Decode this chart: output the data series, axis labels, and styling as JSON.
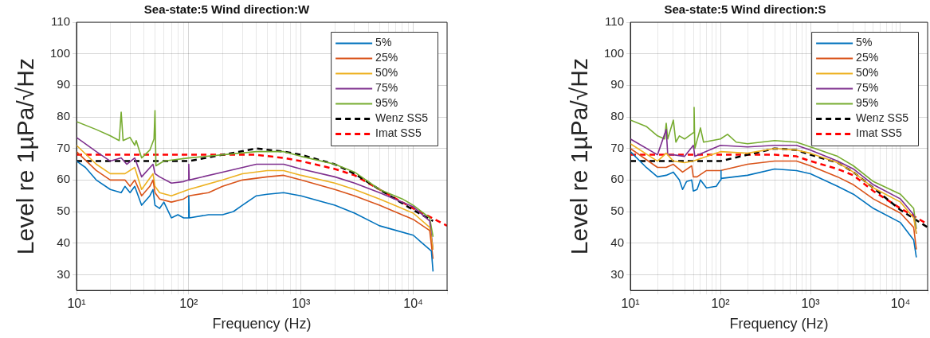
{
  "chart_data": [
    {
      "type": "line",
      "title": "Sea-state:5 Wind direction:W",
      "xlabel": "Frequency (Hz)",
      "ylabel": "Level re 1µPa/√Hz",
      "log": "x",
      "grid": true,
      "legend": "top right",
      "xlim": [
        10,
        20000
      ],
      "ylim": [
        25,
        110
      ],
      "xticks": [
        {
          "value": 10,
          "label": "10¹"
        },
        {
          "value": 20,
          "label": null
        },
        {
          "value": 30,
          "label": null
        },
        {
          "value": 40,
          "label": null
        },
        {
          "value": 50,
          "label": null
        },
        {
          "value": 60,
          "label": null
        },
        {
          "value": 70,
          "label": null
        },
        {
          "value": 80,
          "label": null
        },
        {
          "value": 90,
          "label": null
        },
        {
          "value": 100,
          "label": "10²"
        },
        {
          "value": 200,
          "label": null
        },
        {
          "value": 300,
          "label": null
        },
        {
          "value": 400,
          "label": null
        },
        {
          "value": 500,
          "label": null
        },
        {
          "value": 600,
          "label": null
        },
        {
          "value": 700,
          "label": null
        },
        {
          "value": 800,
          "label": null
        },
        {
          "value": 900,
          "label": null
        },
        {
          "value": 1000,
          "label": "10³"
        },
        {
          "value": 2000,
          "label": null
        },
        {
          "value": 3000,
          "label": null
        },
        {
          "value": 4000,
          "label": null
        },
        {
          "value": 5000,
          "label": null
        },
        {
          "value": 6000,
          "label": null
        },
        {
          "value": 7000,
          "label": null
        },
        {
          "value": 8000,
          "label": null
        },
        {
          "value": 9000,
          "label": null
        },
        {
          "value": 10000,
          "label": "10⁴"
        },
        {
          "value": 20000,
          "label": null
        }
      ],
      "yticks": [
        30,
        40,
        50,
        60,
        70,
        80,
        90,
        100,
        110
      ],
      "series": [
        {
          "name": "5%",
          "color": "#0072bd",
          "x": [
            10,
            12,
            15,
            20,
            25,
            27,
            30,
            33,
            38,
            45,
            48,
            50,
            55,
            60,
            70,
            80,
            90,
            99,
            100,
            101,
            150,
            200,
            250,
            300,
            400,
            500,
            700,
            1000,
            2000,
            3000,
            5000,
            10000,
            12000,
            14500,
            15000
          ],
          "values": [
            66,
            64,
            60,
            57,
            56,
            58,
            56,
            58,
            52,
            55,
            57,
            52,
            51,
            53,
            48,
            49,
            48,
            48,
            55,
            48,
            49,
            49,
            50,
            52,
            55,
            55.5,
            56,
            55,
            52,
            49.5,
            45.5,
            42.5,
            40,
            37.5,
            31
          ]
        },
        {
          "name": "25%",
          "color": "#d95319",
          "x": [
            10,
            15,
            20,
            27,
            30,
            33,
            38,
            45,
            48,
            50,
            55,
            70,
            90,
            100,
            150,
            200,
            300,
            500,
            700,
            1000,
            2000,
            3000,
            5000,
            10000,
            14000,
            15000
          ],
          "values": [
            69,
            63,
            60,
            60,
            58,
            60,
            55,
            58,
            60,
            56,
            54,
            53,
            54,
            55,
            56,
            58,
            60,
            61,
            61.5,
            60,
            57,
            55,
            52,
            47.5,
            44,
            35
          ]
        },
        {
          "name": "50%",
          "color": "#edb120",
          "x": [
            10,
            15,
            20,
            27,
            33,
            38,
            48,
            50,
            55,
            70,
            100,
            200,
            300,
            500,
            700,
            1000,
            2000,
            3000,
            5000,
            10000,
            14000,
            15000
          ],
          "values": [
            71,
            65,
            62,
            62,
            64,
            57,
            62,
            58,
            56,
            55,
            57,
            60,
            62,
            63,
            63,
            61.5,
            59,
            57,
            54,
            49.5,
            45,
            38
          ]
        },
        {
          "name": "75%",
          "color": "#7e2f8e",
          "x": [
            10,
            15,
            20,
            25,
            28,
            33,
            38,
            48,
            50,
            55,
            70,
            90,
            99,
            100,
            101,
            200,
            400,
            700,
            1000,
            2000,
            3000,
            5000,
            10000,
            14000,
            15000
          ],
          "values": [
            73.5,
            69,
            66,
            67,
            65,
            67,
            61,
            65,
            62,
            61,
            59,
            59.5,
            60,
            65,
            60,
            62.5,
            65,
            65,
            63.5,
            61,
            59,
            56,
            51.5,
            47,
            38
          ]
        },
        {
          "name": "95%",
          "color": "#77ac30",
          "x": [
            10,
            15,
            20,
            24,
            25,
            26,
            30,
            33,
            34,
            38,
            45,
            49,
            50,
            51,
            60,
            100,
            200,
            400,
            700,
            1000,
            2000,
            3000,
            5000,
            8000,
            10000,
            14000,
            15000
          ],
          "values": [
            78.5,
            76,
            74,
            72.5,
            81.5,
            72.5,
            73.5,
            71,
            72.5,
            67,
            69.5,
            73,
            82,
            64.5,
            66,
            67,
            68,
            69,
            69,
            67.5,
            65,
            62.5,
            57,
            54,
            52,
            48,
            42
          ]
        },
        {
          "name": "Wenz SS5",
          "color": "#000000",
          "line_style": "dashed",
          "x": [
            10,
            100,
            200,
            400,
            700,
            1000,
            2000,
            3000,
            5000,
            10000,
            15000
          ],
          "values": [
            66,
            66,
            68,
            70,
            69,
            68,
            65,
            62,
            57,
            50.5,
            47
          ]
        },
        {
          "name": "Imat SS5",
          "color": "#ff0000",
          "line_style": "dashed",
          "x": [
            10,
            100,
            400,
            700,
            1000,
            2000,
            3000,
            5000,
            10000,
            20000
          ],
          "values": [
            68,
            68,
            68,
            67,
            66,
            63.5,
            61.5,
            57,
            51,
            45.5
          ]
        }
      ]
    },
    {
      "type": "line",
      "title": "Sea-state:5 Wind direction:S",
      "xlabel": "Frequency (Hz)",
      "ylabel": "Level re 1µPa/√Hz",
      "log": "x",
      "grid": true,
      "legend": "top right",
      "xlim": [
        10,
        20000
      ],
      "ylim": [
        25,
        110
      ],
      "xticks": [
        {
          "value": 10,
          "label": "10¹"
        },
        {
          "value": 20,
          "label": null
        },
        {
          "value": 30,
          "label": null
        },
        {
          "value": 40,
          "label": null
        },
        {
          "value": 50,
          "label": null
        },
        {
          "value": 60,
          "label": null
        },
        {
          "value": 70,
          "label": null
        },
        {
          "value": 80,
          "label": null
        },
        {
          "value": 90,
          "label": null
        },
        {
          "value": 100,
          "label": "10²"
        },
        {
          "value": 200,
          "label": null
        },
        {
          "value": 300,
          "label": null
        },
        {
          "value": 400,
          "label": null
        },
        {
          "value": 500,
          "label": null
        },
        {
          "value": 600,
          "label": null
        },
        {
          "value": 700,
          "label": null
        },
        {
          "value": 800,
          "label": null
        },
        {
          "value": 900,
          "label": null
        },
        {
          "value": 1000,
          "label": "10³"
        },
        {
          "value": 2000,
          "label": null
        },
        {
          "value": 3000,
          "label": null
        },
        {
          "value": 4000,
          "label": null
        },
        {
          "value": 5000,
          "label": null
        },
        {
          "value": 6000,
          "label": null
        },
        {
          "value": 7000,
          "label": null
        },
        {
          "value": 8000,
          "label": null
        },
        {
          "value": 9000,
          "label": null
        },
        {
          "value": 10000,
          "label": "10⁴"
        },
        {
          "value": 20000,
          "label": null
        }
      ],
      "yticks": [
        30,
        40,
        50,
        60,
        70,
        80,
        90,
        100,
        110
      ],
      "series": [
        {
          "name": "5%",
          "color": "#0072bd",
          "x": [
            10,
            15,
            20,
            25,
            30,
            35,
            38,
            42,
            48,
            50,
            55,
            60,
            70,
            90,
            100,
            101,
            102,
            200,
            400,
            700,
            1000,
            2000,
            3000,
            5000,
            10000,
            14000,
            15000
          ],
          "values": [
            69,
            64,
            61,
            61.5,
            62.5,
            60,
            57,
            59.5,
            60,
            56.5,
            57,
            60,
            57.5,
            58,
            60,
            63,
            60.5,
            61.5,
            63.5,
            63,
            62,
            58,
            55.5,
            51,
            46.5,
            41,
            35.5
          ]
        },
        {
          "name": "25%",
          "color": "#d95319",
          "x": [
            10,
            20,
            25,
            30,
            38,
            48,
            50,
            55,
            70,
            100,
            200,
            400,
            700,
            1000,
            2000,
            3000,
            5000,
            10000,
            14000,
            15000
          ],
          "values": [
            70,
            64,
            64,
            65,
            62.5,
            64.5,
            61,
            61,
            63,
            63,
            65,
            66,
            66,
            64.5,
            61,
            58.5,
            54,
            49.5,
            45,
            38
          ]
        },
        {
          "name": "50%",
          "color": "#edb120",
          "x": [
            10,
            20,
            25,
            30,
            40,
            50,
            100,
            200,
            400,
            700,
            1000,
            2000,
            3000,
            5000,
            10000,
            14000,
            15000
          ],
          "values": [
            71.5,
            66,
            68.5,
            66,
            65.5,
            66,
            69,
            68.5,
            70,
            69.5,
            68.5,
            65.5,
            62.5,
            57.5,
            53,
            48,
            43
          ]
        },
        {
          "name": "75%",
          "color": "#7e2f8e",
          "x": [
            10,
            20,
            25,
            26,
            30,
            40,
            50,
            52,
            100,
            200,
            400,
            700,
            1000,
            2000,
            3000,
            5000,
            10000,
            14000,
            15000
          ],
          "values": [
            73,
            68,
            76,
            68,
            68,
            67.5,
            71,
            67.5,
            71,
            70.5,
            71,
            71,
            69.5,
            66,
            63.5,
            58.5,
            54,
            49,
            43
          ]
        },
        {
          "name": "95%",
          "color": "#77ac30",
          "x": [
            10,
            15,
            20,
            24,
            25,
            26,
            30,
            32,
            35,
            40,
            50,
            51,
            52,
            60,
            65,
            100,
            120,
            150,
            200,
            400,
            700,
            1000,
            2000,
            3000,
            5000,
            10000,
            14000,
            15000
          ],
          "values": [
            79,
            77,
            74,
            73,
            78,
            73,
            79,
            72,
            74,
            73,
            75,
            83,
            70,
            76.5,
            72,
            73,
            74.5,
            72,
            71.5,
            72.5,
            72,
            70.5,
            67.5,
            64.5,
            59.5,
            55.5,
            51,
            44.5
          ]
        },
        {
          "name": "Wenz SS5",
          "color": "#000000",
          "line_style": "dashed",
          "x": [
            10,
            100,
            200,
            400,
            700,
            1000,
            2000,
            3000,
            5000,
            10000,
            20000
          ],
          "values": [
            66,
            66,
            68,
            70,
            69.5,
            68,
            65.5,
            62.5,
            57.5,
            50.5,
            45
          ]
        },
        {
          "name": "Imat SS5",
          "color": "#ff0000",
          "line_style": "dashed",
          "x": [
            10,
            100,
            400,
            700,
            1000,
            2000,
            3000,
            5000,
            10000,
            20000
          ],
          "values": [
            68,
            68,
            68,
            67.5,
            66,
            63.5,
            61.5,
            56.5,
            51,
            46
          ]
        }
      ]
    }
  ]
}
